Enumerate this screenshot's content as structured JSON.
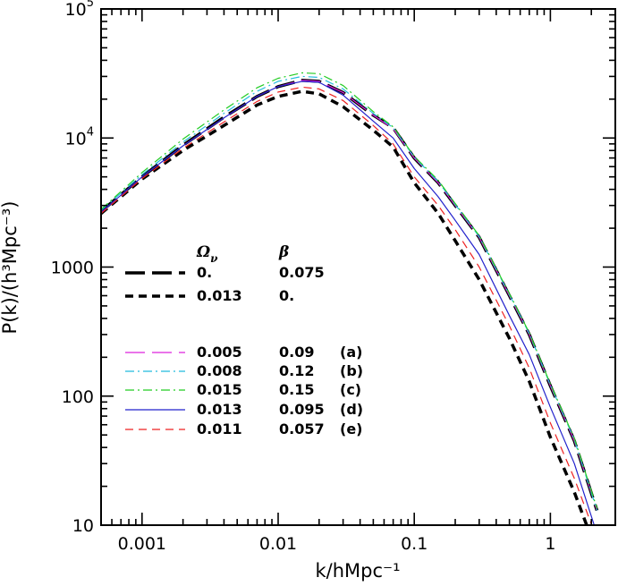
{
  "chart_data": {
    "type": "line",
    "xlabel": "k/hMpc⁻¹",
    "ylabel": "P(k)/(h³Mpc⁻³)",
    "xscale": "log",
    "yscale": "log",
    "xlim": [
      0.0005,
      3.0
    ],
    "ylim": [
      10,
      100000
    ],
    "x_ticks": [
      {
        "value": 0.001,
        "label": "0.001"
      },
      {
        "value": 0.01,
        "label": "0.01"
      },
      {
        "value": 0.1,
        "label": "0.1"
      },
      {
        "value": 1,
        "label": "1"
      }
    ],
    "y_ticks": [
      {
        "value": 10,
        "label": "10"
      },
      {
        "value": 100,
        "label": "100"
      },
      {
        "value": 1000,
        "label": "1000"
      },
      {
        "value": 10000,
        "label": "10",
        "exp": "4"
      },
      {
        "value": 100000,
        "label": "10",
        "exp": "5"
      }
    ],
    "grid": false,
    "legend": {
      "position": "left-center",
      "headers": [
        "Ω",
        "ν",
        "β"
      ],
      "entries": [
        {
          "omega": "0.",
          "beta": "0.075",
          "tag": ""
        },
        {
          "omega": "0.013",
          "beta": "0.",
          "tag": ""
        },
        {
          "omega": "0.005",
          "beta": "0.09",
          "tag": "(a)"
        },
        {
          "omega": "0.008",
          "beta": "0.12",
          "tag": "(b)"
        },
        {
          "omega": "0.015",
          "beta": "0.15",
          "tag": "(c)"
        },
        {
          "omega": "0.013",
          "beta": "0.095",
          "tag": "(d)"
        },
        {
          "omega": "0.011",
          "beta": "0.057",
          "tag": "(e)"
        }
      ]
    },
    "series": [
      {
        "color": "#000000",
        "dash": "long-dash",
        "width": 3.5,
        "x": [
          0.0005,
          0.001,
          0.002,
          0.004,
          0.007,
          0.01,
          0.015,
          0.02,
          0.03,
          0.05,
          0.07,
          0.1,
          0.15,
          0.2,
          0.3,
          0.5,
          0.7,
          1.0,
          1.5,
          2.2
        ],
        "y": [
          2700,
          5000,
          8800,
          14500,
          21000,
          25000,
          28000,
          27500,
          22500,
          15000,
          12000,
          7000,
          4500,
          3000,
          1700,
          600,
          300,
          120,
          45,
          13
        ]
      },
      {
        "color": "#000000",
        "dash": "dash",
        "width": 3.5,
        "x": [
          0.0005,
          0.001,
          0.002,
          0.004,
          0.007,
          0.01,
          0.015,
          0.02,
          0.03,
          0.05,
          0.07,
          0.1,
          0.15,
          0.2,
          0.3,
          0.5,
          0.7,
          1.0,
          1.5,
          2.0
        ],
        "y": [
          2600,
          4800,
          8000,
          12500,
          18000,
          21000,
          23000,
          22000,
          17500,
          11500,
          8500,
          4500,
          2600,
          1600,
          800,
          280,
          130,
          48,
          18,
          8
        ]
      },
      {
        "color": "#dd22dd",
        "dash": "long-dash",
        "width": 1.2,
        "x": [
          0.0005,
          0.001,
          0.002,
          0.004,
          0.007,
          0.01,
          0.015,
          0.02,
          0.03,
          0.05,
          0.07,
          0.1,
          0.15,
          0.2,
          0.3,
          0.5,
          0.7,
          1.0,
          1.5,
          2.2
        ],
        "y": [
          2650,
          5000,
          8700,
          14300,
          21000,
          25000,
          28000,
          27500,
          22500,
          15000,
          11800,
          7000,
          4500,
          3000,
          1700,
          600,
          300,
          120,
          45,
          13
        ]
      },
      {
        "color": "#22bbdd",
        "dash": "dash-dot",
        "width": 1.2,
        "x": [
          0.0005,
          0.001,
          0.002,
          0.004,
          0.007,
          0.01,
          0.015,
          0.02,
          0.03,
          0.05,
          0.07,
          0.1,
          0.15,
          0.2,
          0.3,
          0.5,
          0.7,
          1.0,
          1.5,
          2.2
        ],
        "y": [
          2750,
          5200,
          9300,
          15500,
          23000,
          27500,
          30000,
          29500,
          24000,
          15500,
          12000,
          7100,
          4600,
          3050,
          1720,
          610,
          305,
          122,
          46,
          13
        ]
      },
      {
        "color": "#22cc22",
        "dash": "dash-dot",
        "width": 1.2,
        "x": [
          0.0005,
          0.001,
          0.002,
          0.004,
          0.007,
          0.01,
          0.015,
          0.02,
          0.03,
          0.05,
          0.07,
          0.1,
          0.15,
          0.2,
          0.3,
          0.5,
          0.7,
          1.0,
          1.5,
          2.2
        ],
        "y": [
          2800,
          5400,
          9800,
          16500,
          24500,
          29000,
          32000,
          31500,
          25500,
          16000,
          12200,
          7200,
          4700,
          3100,
          1750,
          620,
          310,
          124,
          47,
          13.5
        ]
      },
      {
        "color": "#2222cc",
        "dash": "solid",
        "width": 1.2,
        "x": [
          0.0005,
          0.001,
          0.002,
          0.004,
          0.007,
          0.01,
          0.015,
          0.02,
          0.03,
          0.05,
          0.07,
          0.1,
          0.15,
          0.2,
          0.3,
          0.5,
          0.7,
          1.0,
          1.5,
          2.1
        ],
        "y": [
          2650,
          5000,
          8700,
          14300,
          21000,
          25000,
          27500,
          27000,
          21500,
          13500,
          10000,
          5800,
          3500,
          2300,
          1250,
          420,
          210,
          82,
          30,
          10
        ]
      },
      {
        "color": "#ee2222",
        "dash": "dash",
        "width": 1.2,
        "x": [
          0.0005,
          0.001,
          0.002,
          0.004,
          0.007,
          0.01,
          0.015,
          0.02,
          0.03,
          0.05,
          0.07,
          0.1,
          0.15,
          0.2,
          0.3,
          0.5,
          0.7,
          1.0,
          1.5,
          2.05
        ],
        "y": [
          2600,
          4850,
          8300,
          13300,
          19200,
          22700,
          24800,
          24000,
          19500,
          12500,
          9000,
          5000,
          3000,
          1950,
          1000,
          350,
          165,
          62,
          23,
          9.5
        ]
      }
    ]
  }
}
